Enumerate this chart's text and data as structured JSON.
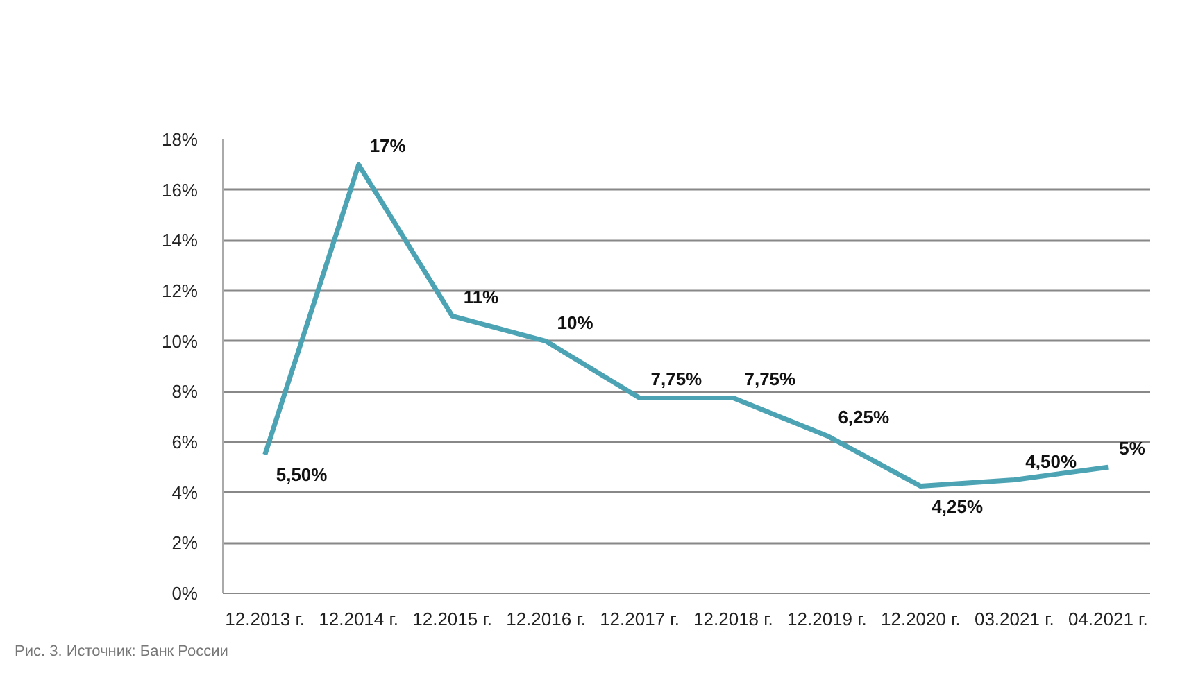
{
  "chart_data": {
    "type": "line",
    "categories": [
      "12.2013 г.",
      "12.2014 г.",
      "12.2015 г.",
      "12.2016 г.",
      "12.2017 г.",
      "12.2018 г.",
      "12.2019 г.",
      "12.2020 г.",
      "03.2021 г.",
      "04.2021 г."
    ],
    "series": [
      {
        "color": "#4ba3b3",
        "values": [
          5.5,
          17,
          11,
          10,
          7.75,
          7.75,
          6.25,
          4.25,
          4.5,
          5
        ],
        "value_labels": [
          "5,50%",
          "17%",
          "11%",
          "10%",
          "7,75%",
          "7,75%",
          "6,25%",
          "4,25%",
          "4,50%",
          "5%"
        ]
      }
    ],
    "ylim": [
      0,
      18
    ],
    "yticks": [
      {
        "value": 0,
        "label": "0%"
      },
      {
        "value": 2,
        "label": "2%"
      },
      {
        "value": 4,
        "label": "4%"
      },
      {
        "value": 6,
        "label": "6%"
      },
      {
        "value": 8,
        "label": "8%"
      },
      {
        "value": 10,
        "label": "10%"
      },
      {
        "value": 12,
        "label": "12%"
      },
      {
        "value": 14,
        "label": "14%"
      },
      {
        "value": 16,
        "label": "16%"
      },
      {
        "value": 18,
        "label": "18%"
      }
    ],
    "grid": "y",
    "marker": "none",
    "line_style": "solid",
    "annotations": [
      "Рис. 3. Источник: Банк России"
    ]
  }
}
